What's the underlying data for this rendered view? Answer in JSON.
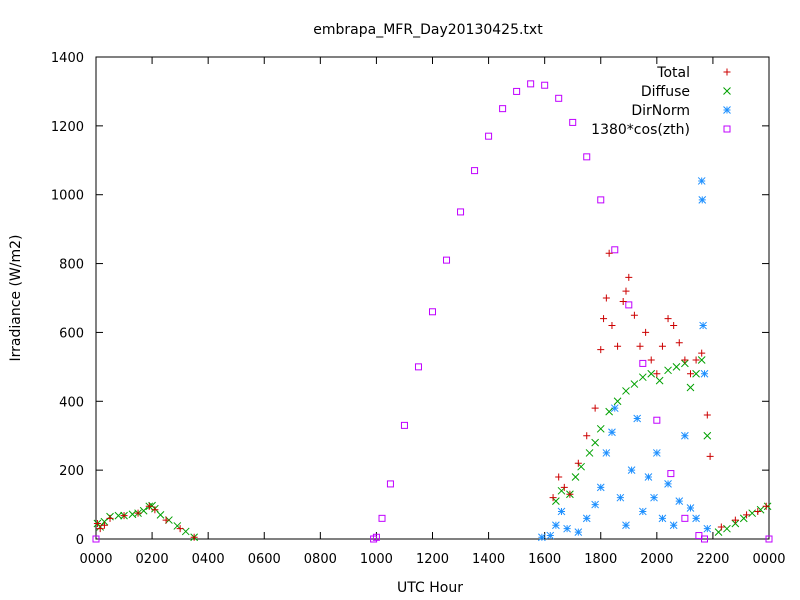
{
  "chart_data": {
    "type": "scatter",
    "title": "embrapa_MFR_Day20130425.txt",
    "xlabel": "UTC Hour",
    "ylabel": "Irradiance (W/m2)",
    "xlim": [
      0,
      24
    ],
    "ylim": [
      0,
      1400
    ],
    "xticks": [
      {
        "value": 0,
        "label": "0000"
      },
      {
        "value": 2,
        "label": "0200"
      },
      {
        "value": 4,
        "label": "0400"
      },
      {
        "value": 6,
        "label": "0600"
      },
      {
        "value": 8,
        "label": "0800"
      },
      {
        "value": 10,
        "label": "1000"
      },
      {
        "value": 12,
        "label": "1200"
      },
      {
        "value": 14,
        "label": "1400"
      },
      {
        "value": 16,
        "label": "1600"
      },
      {
        "value": 18,
        "label": "1800"
      },
      {
        "value": 20,
        "label": "2000"
      },
      {
        "value": 22,
        "label": "2200"
      },
      {
        "value": 24,
        "label": "0000"
      }
    ],
    "yticks": [
      0,
      200,
      400,
      600,
      800,
      1000,
      1200,
      1400
    ],
    "grid": false,
    "legend_position": "top-right",
    "series": [
      {
        "name": "Total",
        "marker": "+",
        "color": "#cc0000",
        "points": [
          [
            0.05,
            45
          ],
          [
            0.15,
            30
          ],
          [
            0.3,
            40
          ],
          [
            0.5,
            60
          ],
          [
            1.0,
            68
          ],
          [
            1.5,
            75
          ],
          [
            1.9,
            95
          ],
          [
            2.1,
            85
          ],
          [
            2.5,
            55
          ],
          [
            3.0,
            30
          ],
          [
            3.5,
            5
          ],
          [
            16.3,
            120
          ],
          [
            16.5,
            180
          ],
          [
            16.7,
            150
          ],
          [
            16.9,
            130
          ],
          [
            17.2,
            220
          ],
          [
            17.5,
            300
          ],
          [
            17.8,
            380
          ],
          [
            18.0,
            550
          ],
          [
            18.1,
            640
          ],
          [
            18.2,
            700
          ],
          [
            18.3,
            830
          ],
          [
            18.4,
            620
          ],
          [
            18.6,
            560
          ],
          [
            18.8,
            690
          ],
          [
            18.9,
            720
          ],
          [
            19.0,
            760
          ],
          [
            19.2,
            650
          ],
          [
            19.4,
            560
          ],
          [
            19.6,
            600
          ],
          [
            19.8,
            520
          ],
          [
            20.0,
            480
          ],
          [
            20.2,
            560
          ],
          [
            20.4,
            640
          ],
          [
            20.6,
            620
          ],
          [
            20.8,
            570
          ],
          [
            21.0,
            520
          ],
          [
            21.2,
            480
          ],
          [
            21.4,
            520
          ],
          [
            21.6,
            540
          ],
          [
            21.8,
            360
          ],
          [
            21.9,
            240
          ],
          [
            22.3,
            35
          ],
          [
            22.8,
            55
          ],
          [
            23.2,
            70
          ],
          [
            23.6,
            80
          ],
          [
            23.9,
            95
          ]
        ]
      },
      {
        "name": "Diffuse",
        "marker": "x",
        "color": "#00a000",
        "points": [
          [
            0.05,
            45
          ],
          [
            0.15,
            35
          ],
          [
            0.3,
            50
          ],
          [
            0.5,
            65
          ],
          [
            0.8,
            68
          ],
          [
            1.0,
            68
          ],
          [
            1.3,
            72
          ],
          [
            1.5,
            75
          ],
          [
            1.7,
            82
          ],
          [
            1.9,
            95
          ],
          [
            2.0,
            97
          ],
          [
            2.1,
            88
          ],
          [
            2.3,
            70
          ],
          [
            2.6,
            55
          ],
          [
            2.9,
            38
          ],
          [
            3.2,
            22
          ],
          [
            3.5,
            5
          ],
          [
            16.4,
            110
          ],
          [
            16.6,
            140
          ],
          [
            16.9,
            130
          ],
          [
            17.1,
            180
          ],
          [
            17.3,
            210
          ],
          [
            17.6,
            250
          ],
          [
            17.8,
            280
          ],
          [
            18.0,
            320
          ],
          [
            18.3,
            370
          ],
          [
            18.6,
            400
          ],
          [
            18.9,
            430
          ],
          [
            19.2,
            450
          ],
          [
            19.5,
            470
          ],
          [
            19.8,
            480
          ],
          [
            20.1,
            460
          ],
          [
            20.4,
            490
          ],
          [
            20.7,
            500
          ],
          [
            21.0,
            510
          ],
          [
            21.2,
            440
          ],
          [
            21.4,
            480
          ],
          [
            21.6,
            520
          ],
          [
            21.8,
            300
          ],
          [
            22.2,
            20
          ],
          [
            22.5,
            30
          ],
          [
            22.8,
            45
          ],
          [
            23.1,
            60
          ],
          [
            23.4,
            75
          ],
          [
            23.7,
            85
          ],
          [
            23.95,
            95
          ]
        ]
      },
      {
        "name": "DirNorm",
        "marker": "*",
        "color": "#1e90ff",
        "points": [
          [
            15.9,
            5
          ],
          [
            16.2,
            10
          ],
          [
            16.4,
            40
          ],
          [
            16.6,
            80
          ],
          [
            16.8,
            30
          ],
          [
            17.2,
            20
          ],
          [
            17.5,
            60
          ],
          [
            17.8,
            100
          ],
          [
            18.0,
            150
          ],
          [
            18.2,
            250
          ],
          [
            18.4,
            310
          ],
          [
            18.5,
            380
          ],
          [
            18.7,
            120
          ],
          [
            18.9,
            40
          ],
          [
            19.1,
            200
          ],
          [
            19.3,
            350
          ],
          [
            19.5,
            80
          ],
          [
            19.7,
            180
          ],
          [
            19.9,
            120
          ],
          [
            20.0,
            250
          ],
          [
            20.2,
            60
          ],
          [
            20.4,
            160
          ],
          [
            20.6,
            40
          ],
          [
            20.8,
            110
          ],
          [
            21.0,
            300
          ],
          [
            21.2,
            90
          ],
          [
            21.4,
            60
          ],
          [
            21.6,
            1040
          ],
          [
            21.62,
            985
          ],
          [
            21.65,
            620
          ],
          [
            21.7,
            480
          ],
          [
            21.8,
            30
          ]
        ]
      },
      {
        "name": "1380*cos(zth)",
        "marker": "square",
        "color": "#c000ff",
        "points": [
          [
            0,
            0
          ],
          [
            9.9,
            0
          ],
          [
            10.0,
            5
          ],
          [
            10.2,
            60
          ],
          [
            10.5,
            160
          ],
          [
            11.0,
            330
          ],
          [
            11.5,
            500
          ],
          [
            12.0,
            660
          ],
          [
            12.5,
            810
          ],
          [
            13.0,
            950
          ],
          [
            13.5,
            1070
          ],
          [
            14.0,
            1170
          ],
          [
            14.5,
            1250
          ],
          [
            15.0,
            1300
          ],
          [
            15.5,
            1322
          ],
          [
            16.0,
            1318
          ],
          [
            16.5,
            1280
          ],
          [
            17.0,
            1210
          ],
          [
            17.5,
            1110
          ],
          [
            18.0,
            985
          ],
          [
            18.5,
            840
          ],
          [
            19.0,
            680
          ],
          [
            19.5,
            510
          ],
          [
            20.0,
            345
          ],
          [
            20.5,
            190
          ],
          [
            21.0,
            60
          ],
          [
            21.5,
            10
          ],
          [
            21.7,
            0
          ],
          [
            24,
            0
          ]
        ]
      }
    ]
  }
}
